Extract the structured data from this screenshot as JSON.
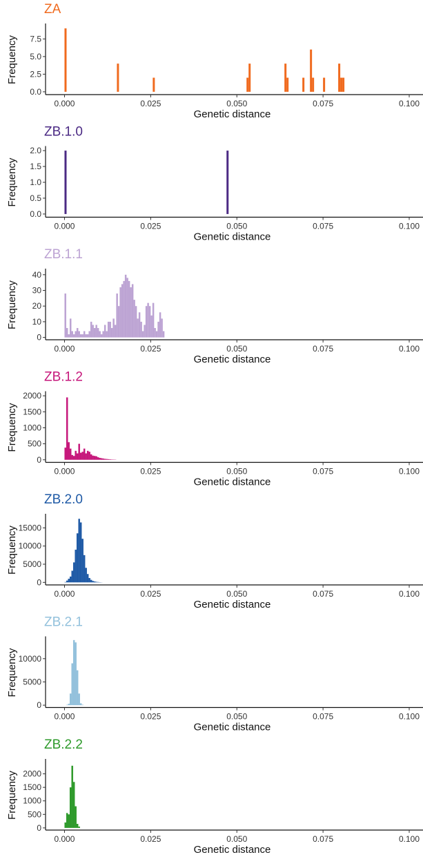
{
  "chart_data": [
    {
      "type": "bar",
      "title": "ZA",
      "color": "#f06a1e",
      "xlabel": "Genetic distance",
      "ylabel": "Frequency",
      "xlim": [
        -0.0055,
        0.104
      ],
      "xticks": [
        "0.000",
        "0.025",
        "0.050",
        "0.075",
        "0.100"
      ],
      "ylim": [
        -0.4,
        9.5
      ],
      "yticks": [
        "0.0",
        "2.5",
        "5.0",
        "7.5"
      ],
      "bin_width": 0.0006,
      "bins": [
        [
          0.0,
          9
        ],
        [
          0.0152,
          4
        ],
        [
          0.0256,
          2
        ],
        [
          0.0528,
          2
        ],
        [
          0.0534,
          4
        ],
        [
          0.0638,
          4
        ],
        [
          0.0644,
          2
        ],
        [
          0.069,
          2
        ],
        [
          0.0712,
          6
        ],
        [
          0.0718,
          2
        ],
        [
          0.075,
          2
        ],
        [
          0.0794,
          4
        ],
        [
          0.08,
          2
        ],
        [
          0.0806,
          2
        ]
      ]
    },
    {
      "type": "bar",
      "title": "ZB.1.0",
      "color": "#4b2a84",
      "xlabel": "Genetic distance",
      "ylabel": "Frequency",
      "xlim": [
        -0.0055,
        0.104
      ],
      "xticks": [
        "0.000",
        "0.025",
        "0.050",
        "0.075",
        "0.100"
      ],
      "ylim": [
        -0.1,
        2.1
      ],
      "yticks": [
        "0.0",
        "0.5",
        "1.0",
        "1.5",
        "2.0"
      ],
      "bin_width": 0.0006,
      "bins": [
        [
          0.0,
          2
        ],
        [
          0.047,
          2
        ]
      ]
    },
    {
      "type": "bar",
      "title": "ZB.1.1",
      "color": "#bca3d3",
      "xlabel": "Genetic distance",
      "ylabel": "Frequency",
      "xlim": [
        -0.0055,
        0.104
      ],
      "xticks": [
        "0.000",
        "0.025",
        "0.050",
        "0.075",
        "0.100"
      ],
      "ylim": [
        -1.5,
        43
      ],
      "yticks": [
        "0",
        "10",
        "20",
        "30",
        "40"
      ],
      "bin_width": 0.0005,
      "bins": [
        [
          0.0,
          28
        ],
        [
          0.0005,
          6
        ],
        [
          0.001,
          2
        ],
        [
          0.0015,
          12
        ],
        [
          0.002,
          4
        ],
        [
          0.0025,
          2
        ],
        [
          0.003,
          4
        ],
        [
          0.0035,
          6
        ],
        [
          0.004,
          4
        ],
        [
          0.0045,
          2
        ],
        [
          0.005,
          2
        ],
        [
          0.0055,
          4
        ],
        [
          0.006,
          2
        ],
        [
          0.0065,
          2
        ],
        [
          0.007,
          4
        ],
        [
          0.0075,
          10
        ],
        [
          0.008,
          8
        ],
        [
          0.0085,
          6
        ],
        [
          0.009,
          8
        ],
        [
          0.0095,
          6
        ],
        [
          0.01,
          4
        ],
        [
          0.0105,
          2
        ],
        [
          0.011,
          4
        ],
        [
          0.0115,
          8
        ],
        [
          0.012,
          4
        ],
        [
          0.0125,
          10
        ],
        [
          0.013,
          10
        ],
        [
          0.0135,
          6
        ],
        [
          0.014,
          12
        ],
        [
          0.0145,
          8
        ],
        [
          0.015,
          28
        ],
        [
          0.0155,
          20
        ],
        [
          0.016,
          32
        ],
        [
          0.0165,
          34
        ],
        [
          0.017,
          36
        ],
        [
          0.0175,
          40
        ],
        [
          0.018,
          38
        ],
        [
          0.0185,
          36
        ],
        [
          0.019,
          32
        ],
        [
          0.0195,
          34
        ],
        [
          0.02,
          24
        ],
        [
          0.0205,
          20
        ],
        [
          0.021,
          12
        ],
        [
          0.0215,
          16
        ],
        [
          0.022,
          10
        ],
        [
          0.0225,
          4
        ],
        [
          0.023,
          8
        ],
        [
          0.0235,
          20
        ],
        [
          0.024,
          22
        ],
        [
          0.0245,
          20
        ],
        [
          0.025,
          14
        ],
        [
          0.0255,
          22
        ],
        [
          0.026,
          6
        ],
        [
          0.0265,
          4
        ],
        [
          0.027,
          10
        ],
        [
          0.0275,
          16
        ],
        [
          0.028,
          12
        ],
        [
          0.0285,
          4
        ]
      ]
    },
    {
      "type": "bar",
      "title": "ZB.1.2",
      "color": "#c6177b",
      "xlabel": "Genetic distance",
      "ylabel": "Frequency",
      "xlim": [
        -0.0055,
        0.104
      ],
      "xticks": [
        "0.000",
        "0.025",
        "0.050",
        "0.075",
        "0.100"
      ],
      "ylim": [
        -80,
        2100
      ],
      "yticks": [
        "0",
        "500",
        "1000",
        "1500",
        "2000"
      ],
      "bin_width": 0.0005,
      "bins": [
        [
          0.0,
          380
        ],
        [
          0.0005,
          1950
        ],
        [
          0.001,
          550
        ],
        [
          0.0015,
          350
        ],
        [
          0.002,
          150
        ],
        [
          0.0025,
          120
        ],
        [
          0.003,
          280
        ],
        [
          0.0035,
          200
        ],
        [
          0.004,
          500
        ],
        [
          0.0045,
          220
        ],
        [
          0.005,
          250
        ],
        [
          0.0055,
          350
        ],
        [
          0.006,
          200
        ],
        [
          0.0065,
          280
        ],
        [
          0.007,
          250
        ],
        [
          0.0075,
          170
        ],
        [
          0.008,
          130
        ],
        [
          0.0085,
          120
        ],
        [
          0.009,
          110
        ],
        [
          0.0095,
          80
        ],
        [
          0.01,
          60
        ],
        [
          0.0105,
          50
        ],
        [
          0.011,
          40
        ],
        [
          0.0115,
          30
        ],
        [
          0.012,
          25
        ],
        [
          0.0125,
          20
        ],
        [
          0.013,
          15
        ],
        [
          0.0135,
          10
        ],
        [
          0.014,
          8
        ],
        [
          0.0145,
          6
        ]
      ]
    },
    {
      "type": "bar",
      "title": "ZB.2.0",
      "color": "#1f5aa6",
      "xlabel": "Genetic distance",
      "ylabel": "Frequency",
      "xlim": [
        -0.0055,
        0.104
      ],
      "xticks": [
        "0.000",
        "0.025",
        "0.050",
        "0.075",
        "0.100"
      ],
      "ylim": [
        -700,
        18500
      ],
      "yticks": [
        "0",
        "5000",
        "10000",
        "15000"
      ],
      "bin_width": 0.0005,
      "bins": [
        [
          0.0,
          100
        ],
        [
          0.0005,
          500
        ],
        [
          0.001,
          1000
        ],
        [
          0.0015,
          1600
        ],
        [
          0.002,
          3200
        ],
        [
          0.0025,
          5500
        ],
        [
          0.003,
          9000
        ],
        [
          0.0035,
          13500
        ],
        [
          0.004,
          17500
        ],
        [
          0.0045,
          16500
        ],
        [
          0.005,
          12000
        ],
        [
          0.0055,
          7500
        ],
        [
          0.006,
          4000
        ],
        [
          0.0065,
          2300
        ],
        [
          0.007,
          1200
        ],
        [
          0.0075,
          700
        ],
        [
          0.008,
          400
        ],
        [
          0.0085,
          250
        ],
        [
          0.009,
          150
        ],
        [
          0.0095,
          100
        ],
        [
          0.01,
          60
        ],
        [
          0.0105,
          30
        ]
      ]
    },
    {
      "type": "bar",
      "title": "ZB.2.1",
      "color": "#93c1dc",
      "xlabel": "Genetic distance",
      "ylabel": "Frequency",
      "xlim": [
        -0.0055,
        0.104
      ],
      "xticks": [
        "0.000",
        "0.025",
        "0.050",
        "0.075",
        "0.100"
      ],
      "ylim": [
        -500,
        14500
      ],
      "yticks": [
        "0",
        "5000",
        "10000"
      ],
      "bin_width": 0.0005,
      "bins": [
        [
          0.0005,
          80
        ],
        [
          0.001,
          300
        ],
        [
          0.0015,
          2500
        ],
        [
          0.002,
          9000
        ],
        [
          0.0025,
          14000
        ],
        [
          0.003,
          13500
        ],
        [
          0.0035,
          7500
        ],
        [
          0.004,
          2500
        ],
        [
          0.0045,
          400
        ],
        [
          0.005,
          100
        ]
      ]
    },
    {
      "type": "bar",
      "title": "ZB.2.2",
      "color": "#2e9a2b",
      "xlabel": "Genetic distance",
      "ylabel": "Frequency",
      "xlim": [
        -0.0055,
        0.104
      ],
      "xticks": [
        "0.000",
        "0.025",
        "0.050",
        "0.075",
        "0.100"
      ],
      "ylim": [
        -80,
        2500
      ],
      "yticks": [
        "0",
        "500",
        "1000",
        "1500",
        "2000"
      ],
      "bin_width": 0.0005,
      "bins": [
        [
          0.0,
          200
        ],
        [
          0.0005,
          550
        ],
        [
          0.001,
          500
        ],
        [
          0.0015,
          1500
        ],
        [
          0.002,
          2300
        ],
        [
          0.0025,
          1700
        ],
        [
          0.003,
          800
        ],
        [
          0.0035,
          150
        ],
        [
          0.004,
          50
        ]
      ]
    }
  ]
}
